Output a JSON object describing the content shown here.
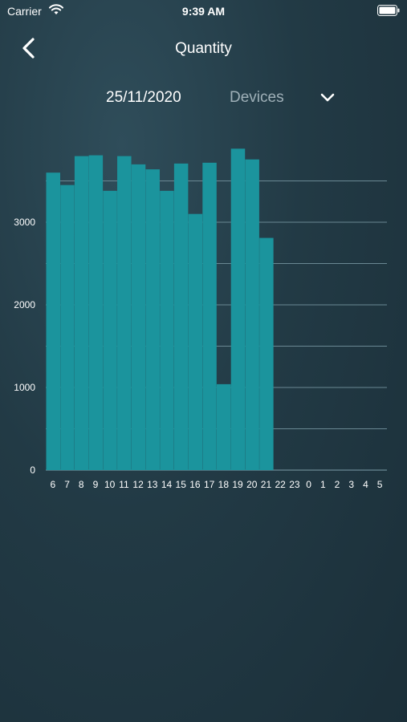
{
  "status_bar": {
    "carrier": "Carrier",
    "time": "9:39 AM",
    "wifi_icon": "wifi-icon",
    "battery_icon": "battery-icon"
  },
  "nav": {
    "title": "Quantity",
    "back_icon": "chevron-left-icon"
  },
  "filters": {
    "date": "25/11/2020",
    "device_select": "Devices",
    "dropdown_icon": "chevron-down-icon"
  },
  "colors": {
    "bar": "#1b949d",
    "grid": "#6a8893",
    "axis_text": "#ffffff",
    "secondary_text": "#9fb0b8"
  },
  "chart_data": {
    "type": "bar",
    "title": "",
    "xlabel": "",
    "ylabel": "",
    "categories": [
      "6",
      "7",
      "8",
      "9",
      "10",
      "11",
      "12",
      "13",
      "14",
      "15",
      "16",
      "17",
      "18",
      "19",
      "20",
      "21",
      "22",
      "23",
      "0",
      "1",
      "2",
      "3",
      "4",
      "5"
    ],
    "values": [
      3600,
      3450,
      3800,
      3810,
      3380,
      3800,
      3700,
      3640,
      3380,
      3710,
      3100,
      3720,
      1040,
      3890,
      3760,
      2810,
      0,
      0,
      0,
      0,
      0,
      0,
      0,
      0
    ],
    "y_ticks": [
      "0",
      "1000",
      "2000",
      "3000"
    ],
    "ylim": [
      0,
      3600
    ],
    "grid": true,
    "legend": "none"
  }
}
